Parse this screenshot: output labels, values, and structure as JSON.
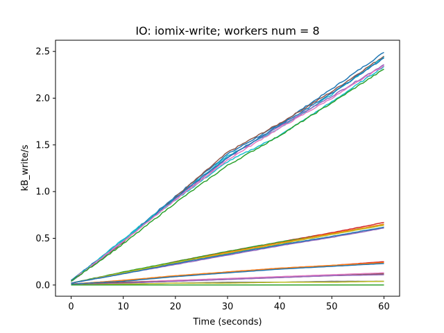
{
  "chart_data": {
    "type": "line",
    "title": "IO: iomix-write; workers num = 8",
    "xlabel": "Time (seconds)",
    "ylabel": "kB_write/s",
    "xlim": [
      -3,
      63
    ],
    "ylim": [
      -0.12,
      2.62
    ],
    "xticks": [
      0,
      10,
      20,
      30,
      40,
      50,
      60
    ],
    "yticks": [
      0.0,
      0.5,
      1.0,
      1.5,
      2.0,
      2.5
    ],
    "xtick_labels": [
      "0",
      "10",
      "20",
      "30",
      "40",
      "50",
      "60"
    ],
    "ytick_labels": [
      "0.0",
      "0.5",
      "1.0",
      "1.5",
      "2.0",
      "2.5"
    ],
    "grid": false,
    "legend": "none",
    "series": [
      {
        "color": "#1f77b4",
        "x": [
          0,
          10,
          20,
          30,
          40,
          50,
          60
        ],
        "y": [
          0.05,
          0.48,
          0.95,
          1.4,
          1.72,
          2.1,
          2.49
        ]
      },
      {
        "color": "#8c564b",
        "x": [
          0,
          10,
          20,
          30,
          40,
          50,
          60
        ],
        "y": [
          0.04,
          0.46,
          0.94,
          1.42,
          1.73,
          2.07,
          2.45
        ]
      },
      {
        "color": "#17becf",
        "x": [
          0,
          10,
          20,
          30,
          40,
          50,
          60
        ],
        "y": [
          0.04,
          0.49,
          0.93,
          1.38,
          1.68,
          2.04,
          2.44
        ]
      },
      {
        "color": "#9467bd",
        "x": [
          0,
          10,
          20,
          30,
          40,
          50,
          60
        ],
        "y": [
          0.04,
          0.47,
          0.92,
          1.36,
          1.7,
          2.02,
          2.36
        ]
      },
      {
        "color": "#1f77b4",
        "x": [
          0,
          10,
          20,
          30,
          40,
          50,
          60
        ],
        "y": [
          0.05,
          0.47,
          0.93,
          1.37,
          1.71,
          2.05,
          2.43
        ]
      },
      {
        "color": "#17becf",
        "x": [
          0,
          10,
          20,
          30,
          40,
          50,
          60
        ],
        "y": [
          0.04,
          0.48,
          0.91,
          1.32,
          1.6,
          1.96,
          2.34
        ]
      },
      {
        "color": "#e377c2",
        "x": [
          0,
          10,
          20,
          30,
          40,
          50,
          60
        ],
        "y": [
          0.04,
          0.47,
          0.91,
          1.34,
          1.68,
          2.0,
          2.35
        ]
      },
      {
        "color": "#2ca02c",
        "x": [
          0,
          10,
          20,
          30,
          40,
          50,
          60
        ],
        "y": [
          0.04,
          0.44,
          0.88,
          1.28,
          1.6,
          1.95,
          2.31
        ]
      },
      {
        "color": "#d62728",
        "x": [
          0,
          10,
          20,
          30,
          40,
          50,
          60
        ],
        "y": [
          0.02,
          0.13,
          0.25,
          0.36,
          0.46,
          0.56,
          0.67
        ]
      },
      {
        "color": "#2ca02c",
        "x": [
          0,
          10,
          20,
          30,
          40,
          50,
          60
        ],
        "y": [
          0.02,
          0.14,
          0.25,
          0.36,
          0.46,
          0.55,
          0.65
        ]
      },
      {
        "color": "#ff7f0e",
        "x": [
          0,
          10,
          20,
          30,
          40,
          50,
          60
        ],
        "y": [
          0.02,
          0.13,
          0.24,
          0.35,
          0.45,
          0.55,
          0.65
        ]
      },
      {
        "color": "#bcbd22",
        "x": [
          0,
          10,
          20,
          30,
          40,
          50,
          60
        ],
        "y": [
          0.02,
          0.13,
          0.24,
          0.34,
          0.44,
          0.54,
          0.64
        ]
      },
      {
        "color": "#9467bd",
        "x": [
          0,
          10,
          20,
          30,
          40,
          50,
          60
        ],
        "y": [
          0.02,
          0.12,
          0.22,
          0.32,
          0.42,
          0.51,
          0.61
        ]
      },
      {
        "color": "#1f77b4",
        "x": [
          0,
          10,
          20,
          30,
          40,
          50,
          60
        ],
        "y": [
          0.02,
          0.12,
          0.23,
          0.33,
          0.43,
          0.52,
          0.62
        ]
      },
      {
        "color": "#d62728",
        "x": [
          0,
          10,
          20,
          30,
          40,
          50,
          60
        ],
        "y": [
          0.01,
          0.05,
          0.09,
          0.14,
          0.18,
          0.21,
          0.25
        ]
      },
      {
        "color": "#ff7f0e",
        "x": [
          0,
          10,
          20,
          30,
          40,
          50,
          60
        ],
        "y": [
          0.01,
          0.05,
          0.1,
          0.14,
          0.18,
          0.21,
          0.24
        ]
      },
      {
        "color": "#1f77b4",
        "x": [
          0,
          10,
          20,
          30,
          40,
          50,
          60
        ],
        "y": [
          0.01,
          0.04,
          0.09,
          0.13,
          0.17,
          0.2,
          0.23
        ]
      },
      {
        "color": "#e377c2",
        "x": [
          0,
          10,
          20,
          30,
          40,
          50,
          60
        ],
        "y": [
          0.0,
          0.03,
          0.05,
          0.07,
          0.09,
          0.11,
          0.13
        ]
      },
      {
        "color": "#8c564b",
        "x": [
          0,
          10,
          20,
          30,
          40,
          50,
          60
        ],
        "y": [
          0.0,
          0.03,
          0.04,
          0.06,
          0.08,
          0.1,
          0.12
        ]
      },
      {
        "color": "#9467bd",
        "x": [
          0,
          10,
          20,
          30,
          40,
          50,
          60
        ],
        "y": [
          0.0,
          0.02,
          0.04,
          0.06,
          0.08,
          0.1,
          0.11
        ]
      },
      {
        "color": "#7f7f7f",
        "x": [
          0,
          10,
          20,
          30,
          40,
          50,
          60
        ],
        "y": [
          0.0,
          0.01,
          0.02,
          0.03,
          0.03,
          0.04,
          0.04
        ]
      },
      {
        "color": "#bcbd22",
        "x": [
          0,
          10,
          20,
          30,
          40,
          50,
          60
        ],
        "y": [
          0.0,
          0.01,
          0.02,
          0.02,
          0.03,
          0.03,
          0.04
        ]
      },
      {
        "color": "#17becf",
        "x": [
          0,
          10,
          20,
          30,
          40,
          50,
          60
        ],
        "y": [
          0.0,
          0.0,
          0.0,
          0.0,
          0.0,
          0.0,
          0.0
        ]
      },
      {
        "color": "#2ca02c",
        "x": [
          0,
          10,
          20,
          30,
          40,
          50,
          60
        ],
        "y": [
          0.0,
          0.0,
          0.0,
          0.0,
          0.0,
          0.0,
          0.0
        ]
      }
    ]
  }
}
